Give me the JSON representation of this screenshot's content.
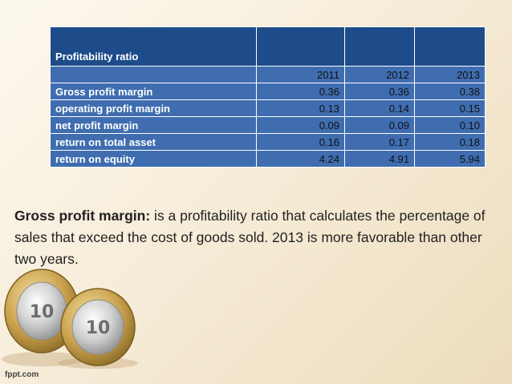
{
  "table": {
    "title": "Profitability ratio",
    "years": [
      "2011",
      "2012",
      "2013"
    ],
    "rows": [
      {
        "label": "Gross profit margin",
        "values": [
          "0.36",
          "0.36",
          "0.38"
        ]
      },
      {
        "label": "operating profit margin",
        "values": [
          "0.13",
          "0.14",
          "0.15"
        ]
      },
      {
        "label": "net profit margin",
        "values": [
          "0.09",
          "0.09",
          "0.10"
        ]
      },
      {
        "label": "return on total asset",
        "values": [
          "0.16",
          "0.17",
          "0.18"
        ]
      },
      {
        "label": "return on equity",
        "values": [
          "4.24",
          "4.91",
          "5.94"
        ]
      }
    ]
  },
  "description": {
    "term": "Gross profit margin:",
    "text": " is a profitability ratio that calculates the percentage of sales that exceed the cost of goods sold. 2013 is more favorable than other two years."
  },
  "coins": {
    "front_denomination": "10",
    "back_denomination": "10"
  },
  "footer": {
    "brand": "fppt.com"
  },
  "colors": {
    "header": "#1e4c8a",
    "row": "#3f6db0",
    "background": "#f5ead4"
  }
}
